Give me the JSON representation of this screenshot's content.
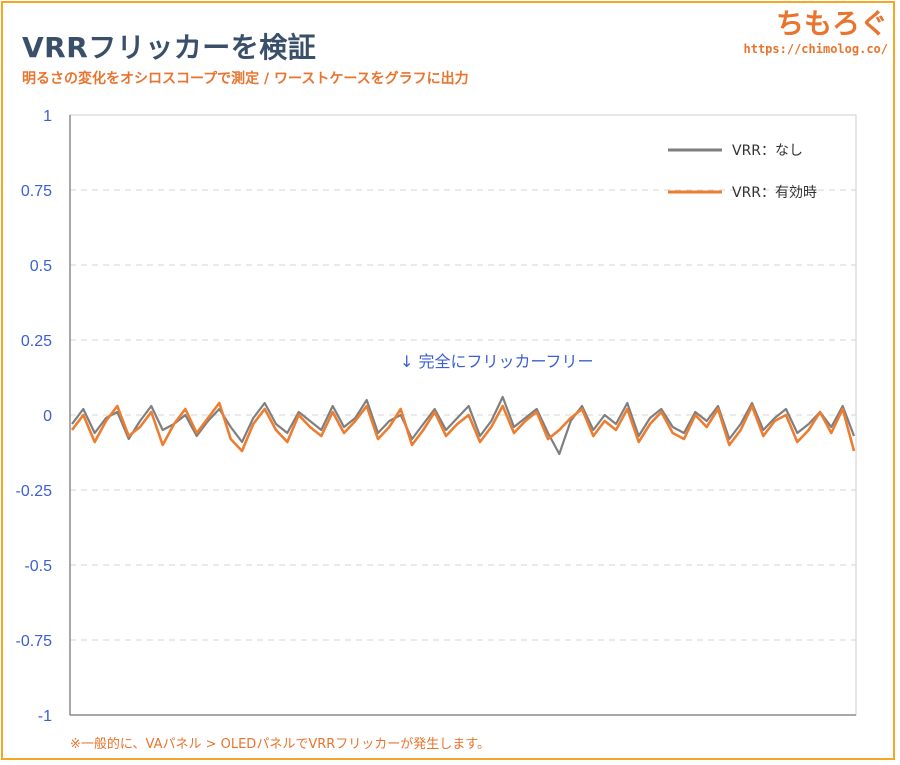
{
  "header": {
    "title": "VRRフリッカーを検証",
    "subtitle": "明るさの変化をオシロスコープで測定 / ワーストケースをグラフに出力"
  },
  "brand": {
    "name": "ちもろぐ",
    "url": "https://chimolog.co/"
  },
  "footnote": "※一般的に、VAパネル > OLEDパネルでVRRフリッカーが発生します。",
  "colors": {
    "series_off": "#7f7f7f",
    "series_on": "#ed7d31",
    "tick_labels": "#3b5fd4",
    "accent": "#e8742e",
    "frame": "#f5a623"
  },
  "chart_data": {
    "type": "line",
    "y_ticks": [
      "1",
      "0.75",
      "0.5",
      "0.25",
      "0",
      "-0.25",
      "-0.5",
      "-0.75",
      "-1"
    ],
    "ylim": [
      -1,
      1
    ],
    "grid": "horizontal dashed",
    "legend_position": "top-right",
    "annotation": "↓ 完全にフリッカーフリー",
    "series": [
      {
        "name": "VRR：なし",
        "color": "#7f7f7f",
        "values": [
          -0.03,
          0.02,
          -0.06,
          -0.01,
          0.01,
          -0.08,
          -0.02,
          0.03,
          -0.05,
          -0.03,
          0.0,
          -0.07,
          -0.02,
          0.02,
          -0.04,
          -0.09,
          -0.01,
          0.04,
          -0.03,
          -0.06,
          0.01,
          -0.02,
          -0.05,
          0.03,
          -0.04,
          -0.01,
          0.05,
          -0.06,
          -0.02,
          0.0,
          -0.08,
          -0.03,
          0.02,
          -0.05,
          -0.01,
          0.03,
          -0.07,
          -0.02,
          0.06,
          -0.04,
          -0.01,
          0.02,
          -0.06,
          -0.13,
          -0.02,
          0.03,
          -0.05,
          0.0,
          -0.03,
          0.04,
          -0.07,
          -0.01,
          0.02,
          -0.04,
          -0.06,
          0.01,
          -0.02,
          0.03,
          -0.08,
          -0.03,
          0.04,
          -0.05,
          -0.01,
          0.02,
          -0.06,
          -0.03,
          0.01,
          -0.04,
          0.03,
          -0.07
        ]
      },
      {
        "name": "VRR：有効時",
        "color": "#ed7d31",
        "values": [
          -0.05,
          0.0,
          -0.09,
          -0.02,
          0.03,
          -0.07,
          -0.04,
          0.01,
          -0.1,
          -0.03,
          0.02,
          -0.06,
          -0.01,
          0.04,
          -0.08,
          -0.12,
          -0.03,
          0.02,
          -0.05,
          -0.09,
          0.0,
          -0.04,
          -0.07,
          0.01,
          -0.06,
          -0.02,
          0.03,
          -0.08,
          -0.04,
          0.02,
          -0.1,
          -0.05,
          0.01,
          -0.07,
          -0.03,
          0.0,
          -0.09,
          -0.04,
          0.03,
          -0.06,
          -0.02,
          0.01,
          -0.08,
          -0.05,
          -0.01,
          0.02,
          -0.07,
          -0.02,
          -0.05,
          0.02,
          -0.09,
          -0.03,
          0.01,
          -0.06,
          -0.08,
          0.0,
          -0.04,
          0.02,
          -0.1,
          -0.05,
          0.03,
          -0.07,
          -0.02,
          0.0,
          -0.09,
          -0.05,
          0.01,
          -0.06,
          0.02,
          -0.12
        ]
      }
    ]
  }
}
